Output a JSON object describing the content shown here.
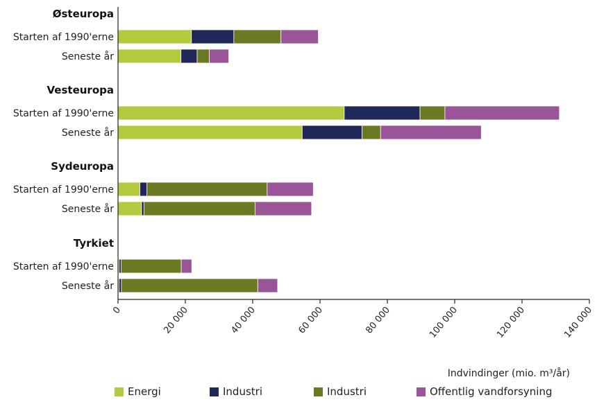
{
  "chart_data": {
    "type": "bar",
    "orientation": "horizontal",
    "stacked": true,
    "xlabel": "Indvindinger (mio. m³/år)",
    "xlim": [
      0,
      140000
    ],
    "xticks": [
      "0",
      "20 000",
      "40 000",
      "60 000",
      "80 000",
      "100 000",
      "120 000",
      "140 000"
    ],
    "grid": false,
    "legend_position": "bottom",
    "groups": [
      {
        "name": "Østeuropa",
        "bars": [
          {
            "label": "Starten af 1990'erne",
            "values": [
              21800,
              12600,
              14000,
              11100
            ]
          },
          {
            "label": "Seneste år",
            "values": [
              18700,
              4800,
              3600,
              5800
            ]
          }
        ]
      },
      {
        "name": "Vesteuropa",
        "bars": [
          {
            "label": "Starten af 1990'erne",
            "values": [
              67200,
              22500,
              7400,
              34000
            ]
          },
          {
            "label": "Seneste år",
            "values": [
              54700,
              17800,
              5500,
              29900
            ]
          }
        ]
      },
      {
        "name": "Sydeuropa",
        "bars": [
          {
            "label": "Starten af 1990'erne",
            "values": [
              6500,
              2100,
              35700,
              13700
            ]
          },
          {
            "label": "Seneste år",
            "values": [
              7000,
              700,
              33000,
              16800
            ]
          }
        ]
      },
      {
        "name": "Tyrkiet",
        "bars": [
          {
            "label": "Starten af 1990'erne",
            "values": [
              300,
              600,
              17900,
              3100
            ]
          },
          {
            "label": "Seneste år",
            "values": [
              300,
              700,
              40500,
              5900
            ]
          }
        ]
      }
    ],
    "series": [
      {
        "name": "Energi",
        "color": "#b5c93f"
      },
      {
        "name": "Industri",
        "color": "#1f2859"
      },
      {
        "name": "Industri",
        "color": "#6b7a22"
      },
      {
        "name": "Offentlig vandforsyning",
        "color": "#9a5598"
      }
    ]
  }
}
